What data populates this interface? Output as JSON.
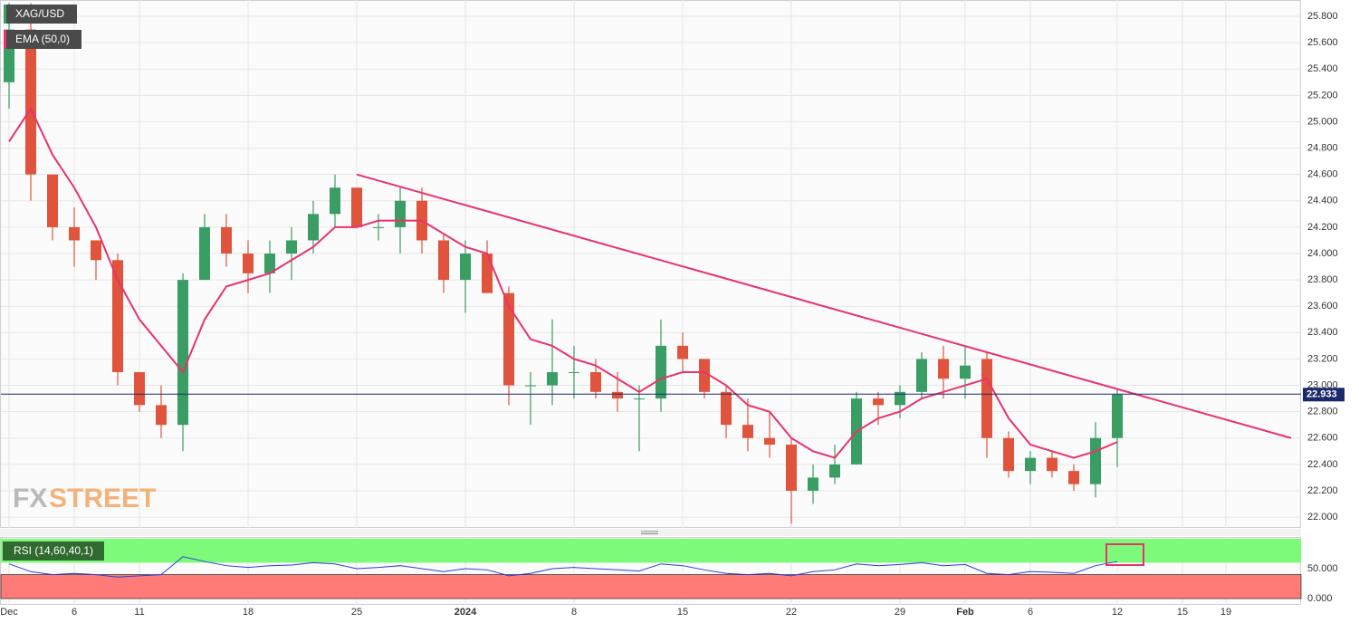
{
  "chart_data": {
    "type": "candlestick",
    "categories": [
      "Dec",
      null,
      null,
      "6",
      null,
      null,
      "11",
      null,
      null,
      null,
      null,
      "18",
      null,
      null,
      null,
      null,
      "25",
      null,
      null,
      null,
      null,
      "2024",
      null,
      null,
      null,
      null,
      "8",
      null,
      null,
      null,
      null,
      "15",
      null,
      null,
      null,
      null,
      "22",
      null,
      null,
      null,
      null,
      "29",
      null,
      null,
      "Feb",
      null,
      null,
      "6",
      null,
      null,
      null,
      "12",
      null,
      null,
      "15",
      null,
      "19"
    ],
    "series": [
      {
        "name": "XAG/USD",
        "up_color": "#3a9d63",
        "down_color": "#e0533d",
        "open": [
          25.3,
          25.7,
          24.6,
          24.2,
          24.1,
          23.95,
          23.1,
          22.85,
          22.7,
          23.8,
          24.2,
          24.0,
          23.85,
          24.0,
          24.1,
          24.3,
          24.5,
          24.2,
          24.2,
          24.4,
          24.1,
          23.8,
          24.0,
          23.7,
          23.0,
          23.0,
          23.1,
          23.1,
          22.95,
          22.9,
          22.9,
          23.3,
          23.2,
          22.95,
          22.7,
          22.6,
          22.55,
          22.2,
          22.3,
          22.4,
          22.9,
          22.85,
          22.95,
          23.2,
          23.05,
          23.2,
          22.6,
          22.35,
          22.45,
          22.35,
          22.25,
          22.6,
          null,
          null,
          null,
          null,
          null
        ],
        "high": [
          25.9,
          25.9,
          24.6,
          24.35,
          24.1,
          24.0,
          23.1,
          23.0,
          23.85,
          24.3,
          24.3,
          24.1,
          24.1,
          24.2,
          24.4,
          24.6,
          24.5,
          24.3,
          24.5,
          24.5,
          24.15,
          24.1,
          24.1,
          23.75,
          23.1,
          23.5,
          23.3,
          23.2,
          23.1,
          23.0,
          23.5,
          23.4,
          23.2,
          23.0,
          22.9,
          22.8,
          22.6,
          22.4,
          22.55,
          22.95,
          22.95,
          23.0,
          23.25,
          23.3,
          23.3,
          23.25,
          22.65,
          22.5,
          22.5,
          22.4,
          22.72,
          22.97,
          null,
          null,
          null,
          null,
          null
        ],
        "low": [
          25.1,
          24.4,
          24.1,
          23.9,
          23.8,
          23.0,
          22.8,
          22.6,
          22.5,
          23.8,
          23.9,
          23.7,
          23.7,
          23.8,
          24.0,
          24.2,
          24.2,
          24.1,
          24.0,
          24.0,
          23.7,
          23.55,
          23.7,
          22.85,
          22.7,
          22.85,
          22.9,
          22.9,
          22.8,
          22.5,
          22.8,
          23.1,
          22.9,
          22.6,
          22.5,
          22.45,
          21.95,
          22.1,
          22.25,
          22.4,
          22.7,
          22.75,
          22.9,
          22.9,
          22.9,
          22.45,
          22.3,
          22.25,
          22.3,
          22.2,
          22.15,
          22.38,
          null,
          null,
          null,
          null,
          null
        ],
        "close": [
          25.7,
          24.6,
          24.2,
          24.1,
          23.95,
          23.1,
          22.85,
          22.7,
          23.8,
          24.2,
          24.0,
          23.85,
          24.0,
          24.1,
          24.3,
          24.5,
          24.2,
          24.2,
          24.4,
          24.1,
          23.8,
          24.0,
          23.7,
          23.0,
          23.0,
          23.1,
          23.1,
          22.95,
          22.9,
          22.9,
          23.3,
          23.2,
          22.95,
          22.7,
          22.6,
          22.55,
          22.2,
          22.3,
          22.4,
          22.9,
          22.85,
          22.95,
          23.2,
          23.05,
          23.15,
          22.6,
          22.35,
          22.45,
          22.35,
          22.25,
          22.6,
          22.93,
          null,
          null,
          null,
          null,
          null
        ]
      },
      {
        "name": "EMA (50,0)",
        "color": "#e8336d",
        "values": [
          24.85,
          25.1,
          24.75,
          24.5,
          24.2,
          23.8,
          23.5,
          23.3,
          23.1,
          23.5,
          23.75,
          23.8,
          23.85,
          23.95,
          24.05,
          24.2,
          24.2,
          24.25,
          24.25,
          24.25,
          24.15,
          24.05,
          24.0,
          23.6,
          23.35,
          23.3,
          23.2,
          23.15,
          23.05,
          22.95,
          23.05,
          23.1,
          23.1,
          23.0,
          22.85,
          22.8,
          22.6,
          22.5,
          22.45,
          22.65,
          22.75,
          22.8,
          22.9,
          22.95,
          23.0,
          23.05,
          22.75,
          22.55,
          22.5,
          22.45,
          22.5,
          22.57,
          null,
          null,
          null,
          null,
          null
        ]
      }
    ],
    "trendline": {
      "color": "#e8336d",
      "x": [
        16,
        59
      ],
      "values": [
        24.6,
        22.6
      ]
    },
    "last_price": 22.933,
    "last_price_color": "#1a2a6c",
    "ylim": [
      21.918,
      25.924
    ],
    "yticks": [
      {
        "value": 22,
        "label": "22.000"
      },
      {
        "value": 22.2,
        "label": "22.200"
      },
      {
        "value": 22.4,
        "label": "22.400"
      },
      {
        "value": 22.6,
        "label": "22.600"
      },
      {
        "value": 22.8,
        "label": "22.800"
      },
      {
        "value": 23,
        "label": "23.000"
      },
      {
        "value": 23.2,
        "label": "23.200"
      },
      {
        "value": 23.4,
        "label": "23.400"
      },
      {
        "value": 23.6,
        "label": "23.600"
      },
      {
        "value": 23.8,
        "label": "23.800"
      },
      {
        "value": 24,
        "label": "24.000"
      },
      {
        "value": 24.2,
        "label": "24.200"
      },
      {
        "value": 24.4,
        "label": "24.400"
      },
      {
        "value": 24.6,
        "label": "24.600"
      },
      {
        "value": 24.8,
        "label": "24.800"
      },
      {
        "value": 25,
        "label": "25.000"
      },
      {
        "value": 25.2,
        "label": "25.200"
      },
      {
        "value": 25.4,
        "label": "25.400"
      },
      {
        "value": 25.6,
        "label": "25.600"
      },
      {
        "value": 25.8,
        "label": "25.800"
      }
    ],
    "grid": true,
    "watermark": {
      "prefix": "FX",
      "suffix": "STREET"
    },
    "rsi": {
      "name": "RSI (14,60,40,1)",
      "color": "#2b3fd6",
      "values": [
        58,
        45,
        40,
        42,
        40,
        36,
        38,
        40,
        70,
        62,
        55,
        52,
        55,
        56,
        60,
        58,
        50,
        52,
        55,
        50,
        45,
        50,
        48,
        38,
        42,
        50,
        52,
        50,
        48,
        46,
        58,
        55,
        48,
        42,
        40,
        42,
        38,
        45,
        48,
        58,
        55,
        57,
        60,
        55,
        57,
        42,
        40,
        45,
        44,
        42,
        55,
        62,
        null,
        null,
        null,
        null,
        null
      ],
      "upper": 60,
      "lower": 40,
      "top": 100,
      "bottom": 0,
      "upper_color": "#7dfa7a",
      "lower_color": "#ff7b78",
      "ylim": [
        -10.6,
        103
      ],
      "yticks": [
        {
          "value": 0,
          "label": "0.000"
        },
        {
          "value": 50,
          "label": "50.000"
        }
      ]
    }
  }
}
